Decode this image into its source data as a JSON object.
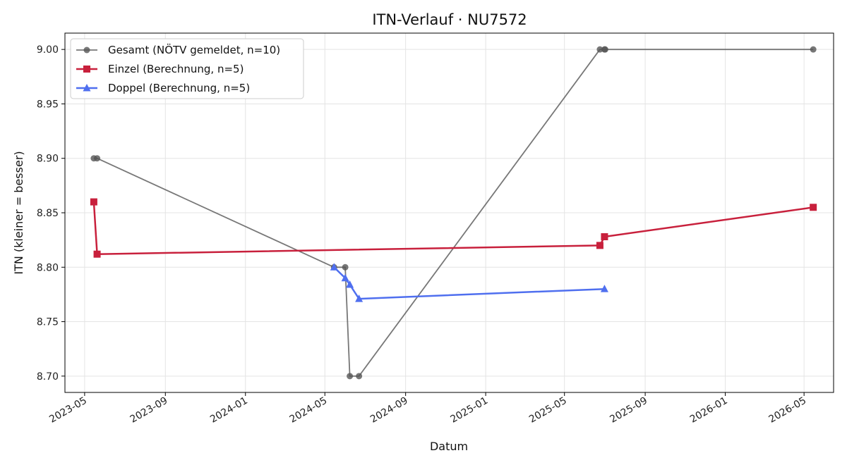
{
  "chart_data": {
    "type": "line",
    "title": "ITN-Verlauf · NU7572",
    "xlabel": "Datum",
    "ylabel": "ITN  (kleiner = besser)",
    "ylim": [
      8.685,
      9.015
    ],
    "xlim": [
      "2023-04-01",
      "2026-06-15"
    ],
    "grid": true,
    "legend_position": "top-left",
    "x_ticks": [
      "2023-05",
      "2023-09",
      "2024-01",
      "2024-05",
      "2024-09",
      "2025-01",
      "2025-05",
      "2025-09",
      "2026-01",
      "2026-05"
    ],
    "y_ticks": [
      "8.70",
      "8.75",
      "8.80",
      "8.85",
      "8.90",
      "8.95",
      "9.00"
    ],
    "series": [
      {
        "name": "Gesamt (NÖTV gemeldet, n=10)",
        "color": "#555555",
        "marker": "circle",
        "points": [
          {
            "x": "2023-05-15",
            "y": 8.9
          },
          {
            "x": "2023-05-20",
            "y": 8.9
          },
          {
            "x": "2024-05-15",
            "y": 8.8
          },
          {
            "x": "2024-06-01",
            "y": 8.8
          },
          {
            "x": "2024-06-08",
            "y": 8.7
          },
          {
            "x": "2024-06-22",
            "y": 8.7
          },
          {
            "x": "2025-06-24",
            "y": 9.0
          },
          {
            "x": "2025-07-01",
            "y": 9.0
          },
          {
            "x": "2025-07-02",
            "y": 9.0
          },
          {
            "x": "2026-05-15",
            "y": 9.0
          }
        ]
      },
      {
        "name": "Einzel (Berechnung, n=5)",
        "color": "#c8203c",
        "marker": "square",
        "points": [
          {
            "x": "2023-05-15",
            "y": 8.86
          },
          {
            "x": "2023-05-20",
            "y": 8.812
          },
          {
            "x": "2025-06-24",
            "y": 8.82
          },
          {
            "x": "2025-07-01",
            "y": 8.828
          },
          {
            "x": "2026-05-15",
            "y": 8.855
          }
        ]
      },
      {
        "name": "Doppel (Berechnung, n=5)",
        "color": "#4f6fef",
        "marker": "triangle",
        "points": [
          {
            "x": "2024-05-15",
            "y": 8.8
          },
          {
            "x": "2024-06-01",
            "y": 8.79
          },
          {
            "x": "2024-06-08",
            "y": 8.784
          },
          {
            "x": "2024-06-22",
            "y": 8.771
          },
          {
            "x": "2025-07-01",
            "y": 8.78
          }
        ]
      }
    ]
  }
}
